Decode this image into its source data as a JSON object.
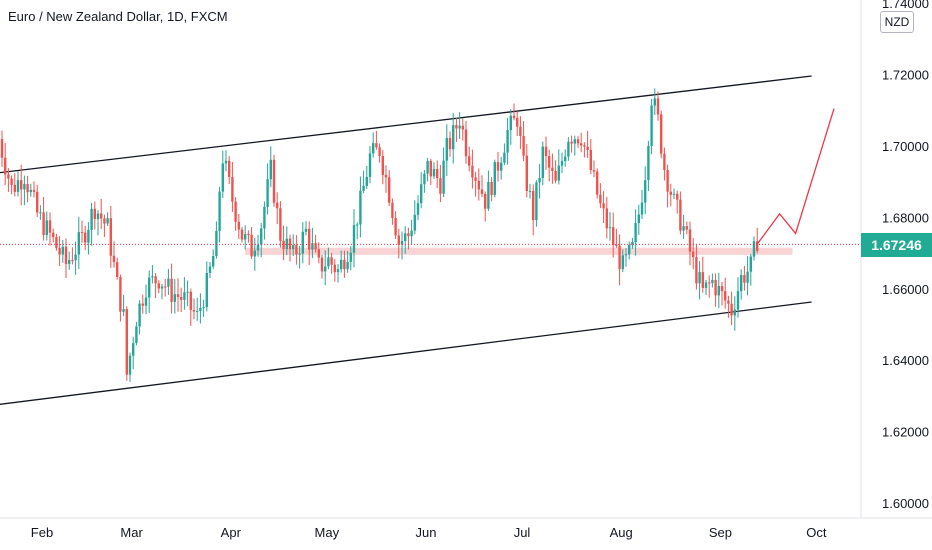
{
  "header": {
    "title": "Euro / New Zealand Dollar, 1D, FXCM"
  },
  "price_axis": {
    "currency": "NZD",
    "top_clipped_label": "1.74000",
    "current_price_label": "1.67246",
    "current_price_color": "#22ab94"
  },
  "colors": {
    "up": "#26a69a",
    "down": "#ef5350",
    "channel": "#131722",
    "projection": "#f23645",
    "zone": "#f7c5c5",
    "price_line": "#f23645"
  },
  "chart_data": {
    "type": "candlestick",
    "symbol": "EUR/NZD",
    "timeframe": "1D",
    "yticks": [
      1.6,
      1.62,
      1.64,
      1.66,
      1.68,
      1.7,
      1.72
    ],
    "ytick_labels": [
      "1.60000",
      "1.62000",
      "1.64000",
      "1.66000",
      "1.68000",
      "1.70000",
      "1.72000"
    ],
    "xticks": [
      {
        "day": 31,
        "label": "Feb"
      },
      {
        "day": 59,
        "label": "Mar"
      },
      {
        "day": 90,
        "label": "Apr"
      },
      {
        "day": 120,
        "label": "May"
      },
      {
        "day": 151,
        "label": "Jun"
      },
      {
        "day": 181,
        "label": "Jul"
      },
      {
        "day": 212,
        "label": "Aug"
      },
      {
        "day": 243,
        "label": "Sep"
      },
      {
        "day": 273,
        "label": "Oct"
      }
    ],
    "current_price": 1.67246,
    "ohlc_anchors": [
      [
        20,
        1.702
      ],
      [
        24,
        1.688
      ],
      [
        28,
        1.692
      ],
      [
        32,
        1.681
      ],
      [
        36,
        1.675
      ],
      [
        41,
        1.667
      ],
      [
        46,
        1.674
      ],
      [
        50,
        1.683
      ],
      [
        54,
        1.677
      ],
      [
        57,
        1.661
      ],
      [
        59,
        1.652
      ],
      [
        60,
        1.636
      ],
      [
        63,
        1.652
      ],
      [
        66,
        1.661
      ],
      [
        70,
        1.663
      ],
      [
        74,
        1.659
      ],
      [
        78,
        1.657
      ],
      [
        82,
        1.652
      ],
      [
        85,
        1.661
      ],
      [
        88,
        1.673
      ],
      [
        89,
        1.688
      ],
      [
        90,
        1.697
      ],
      [
        93,
        1.685
      ],
      [
        96,
        1.675
      ],
      [
        99,
        1.671
      ],
      [
        102,
        1.678
      ],
      [
        105,
        1.693
      ],
      [
        108,
        1.675
      ],
      [
        112,
        1.669
      ],
      [
        116,
        1.676
      ],
      [
        120,
        1.666
      ],
      [
        123,
        1.668
      ],
      [
        126,
        1.665
      ],
      [
        130,
        1.673
      ],
      [
        133,
        1.684
      ],
      [
        136,
        1.697
      ],
      [
        139,
        1.699
      ],
      [
        142,
        1.687
      ],
      [
        145,
        1.673
      ],
      [
        148,
        1.675
      ],
      [
        151,
        1.684
      ],
      [
        154,
        1.694
      ],
      [
        158,
        1.69
      ],
      [
        160,
        1.699
      ],
      [
        162,
        1.703
      ],
      [
        164,
        1.708
      ],
      [
        166,
        1.7
      ],
      [
        169,
        1.692
      ],
      [
        172,
        1.685
      ],
      [
        175,
        1.692
      ],
      [
        179,
        1.704
      ],
      [
        182,
        1.708
      ],
      [
        184,
        1.694
      ],
      [
        187,
        1.681
      ],
      [
        190,
        1.698
      ],
      [
        194,
        1.689
      ],
      [
        198,
        1.703
      ],
      [
        202,
        1.703
      ],
      [
        206,
        1.69
      ],
      [
        208,
        1.683
      ],
      [
        212,
        1.673
      ],
      [
        215,
        1.666
      ],
      [
        218,
        1.671
      ],
      [
        220,
        1.681
      ],
      [
        222,
        1.693
      ],
      [
        224,
        1.714
      ],
      [
        226,
        1.707
      ],
      [
        228,
        1.694
      ],
      [
        231,
        1.684
      ],
      [
        234,
        1.677
      ],
      [
        237,
        1.667
      ],
      [
        240,
        1.659
      ],
      [
        243,
        1.662
      ],
      [
        246,
        1.658
      ],
      [
        249,
        1.654
      ],
      [
        252,
        1.663
      ],
      [
        255,
        1.666
      ],
      [
        257,
        1.674
      ]
    ],
    "channel_lines": [
      {
        "x1": 20,
        "y1": 1.6925,
        "x2": 274,
        "y2": 1.7196
      },
      {
        "x1": 20,
        "y1": 1.6276,
        "x2": 274,
        "y2": 1.6563
      }
    ],
    "zone": {
      "x1": 97,
      "x2": 268,
      "y_low": 1.6695,
      "y_high": 1.6715
    },
    "projection_path": [
      [
        257,
        1.6725
      ],
      [
        264,
        1.681
      ],
      [
        269,
        1.6755
      ],
      [
        281,
        1.7105
      ]
    ]
  }
}
